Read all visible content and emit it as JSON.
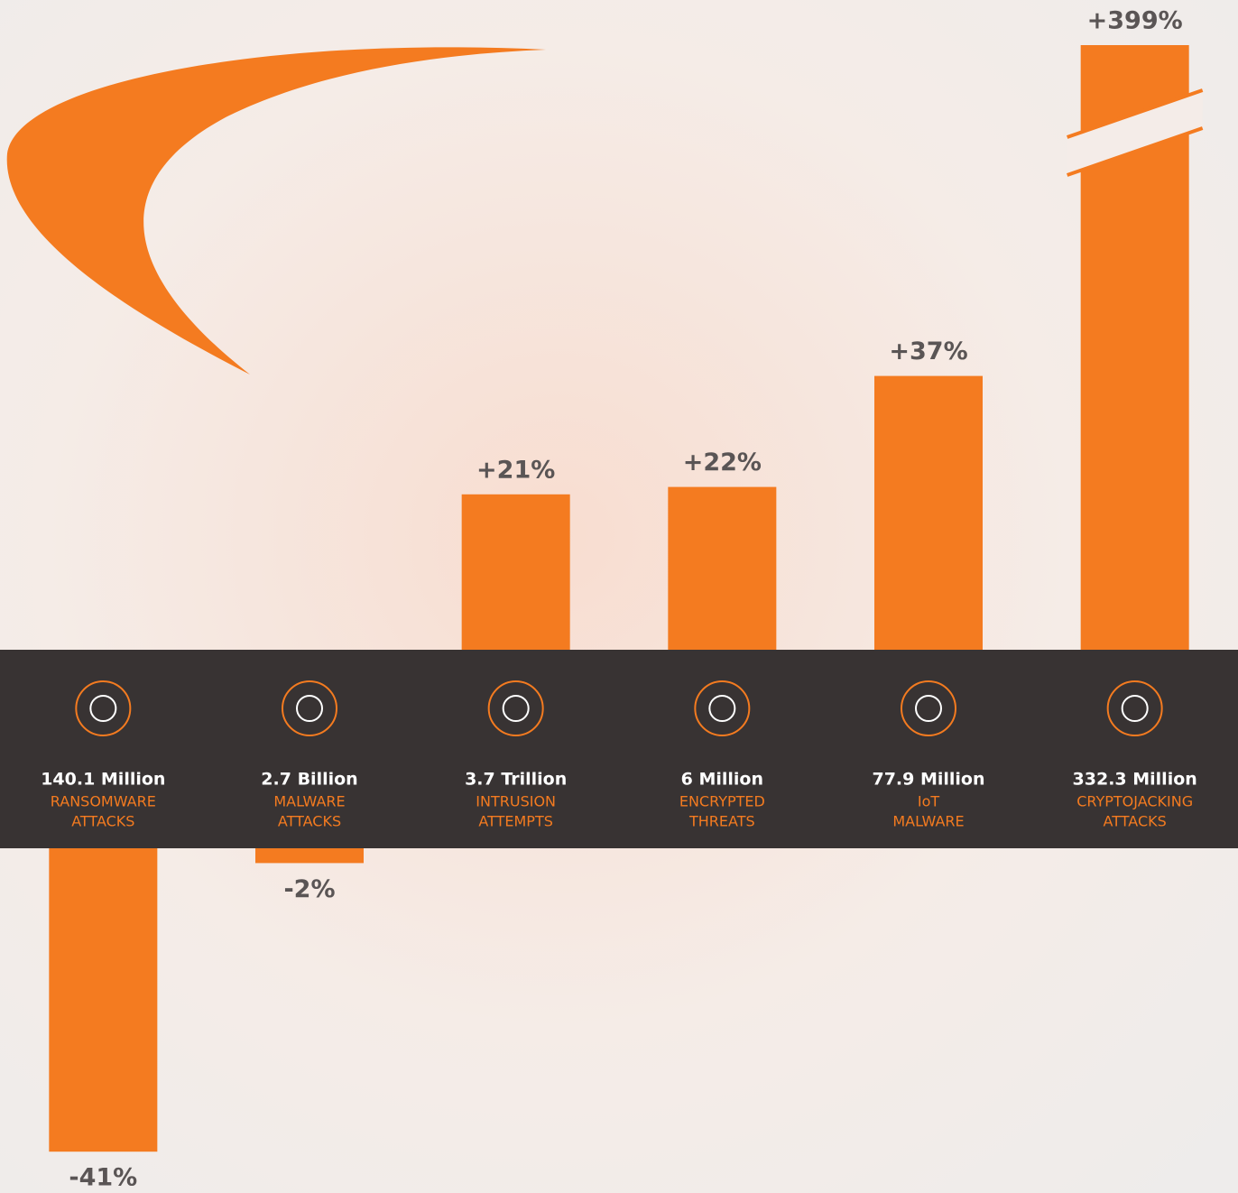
{
  "chart_data": {
    "type": "bar",
    "categories": [
      "140.1 Million",
      "2.7 Billion",
      "3.7 Trillion",
      "6 Million",
      "77.9 Million",
      "332.3 Million"
    ],
    "category_descriptions": [
      [
        "RANSOMWARE",
        "ATTACKS"
      ],
      [
        "MALWARE",
        "ATTACKS"
      ],
      [
        "INTRUSION",
        "ATTEMPTS"
      ],
      [
        "ENCRYPTED",
        "THREATS"
      ],
      [
        "IoT",
        "MALWARE"
      ],
      [
        "CRYPTOJACKING",
        "ATTACKS"
      ]
    ],
    "values": [
      -41,
      -2,
      21,
      22,
      37,
      399
    ],
    "value_labels": [
      "-41%",
      "-2%",
      "+21%",
      "+22%",
      "+37%",
      "+399%"
    ],
    "color": "#f47b20"
  }
}
